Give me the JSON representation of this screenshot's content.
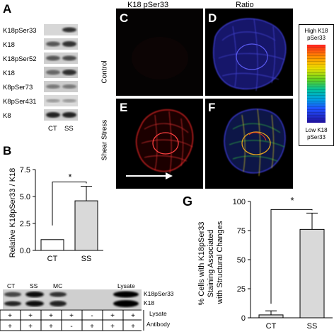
{
  "panel_a": {
    "letter": "A",
    "blot_labels": [
      "K18pSer33",
      "K18",
      "K18pSer52",
      "K18",
      "K8pSer73",
      "K8pSer431",
      "K8"
    ],
    "lanes": [
      "CT",
      "SS"
    ]
  },
  "panel_b": {
    "letter": "B",
    "significance": "*",
    "ip_lanes": [
      "CT",
      "SS",
      "MC",
      "Lysate"
    ],
    "ip_blot_labels": [
      "K18pSer33",
      "K18"
    ],
    "table": {
      "rows": [
        {
          "label": "Lysate",
          "signs": [
            "+",
            "+",
            "+",
            "+",
            "-",
            "+",
            "+"
          ]
        },
        {
          "label": "Antibody",
          "signs": [
            "+",
            "+",
            "+",
            "-",
            "+",
            "+",
            "+"
          ]
        }
      ]
    }
  },
  "panel_micro": {
    "col_titles": [
      "K18 pSer33",
      "Ratio"
    ],
    "row_labels": [
      "Control",
      "Shear Stress"
    ],
    "letters": [
      "C",
      "D",
      "E",
      "F"
    ],
    "scale": {
      "high": "High K18 pSer33",
      "low": "Low K18 pSer33"
    }
  },
  "panel_g": {
    "letter": "G",
    "significance": "*"
  },
  "chart_data": [
    {
      "type": "bar",
      "categories": [
        "CT",
        "SS"
      ],
      "values": [
        1.0,
        4.6
      ],
      "errors": [
        0,
        1.35
      ],
      "ylabel": "Relative K18pSer33 / K18",
      "ylim": [
        0,
        7.5
      ],
      "yticks": [
        "0.0",
        "2.5",
        "5.0",
        "7.5"
      ],
      "colors": [
        "#ffffff",
        "#d9d9d9"
      ]
    },
    {
      "type": "bar",
      "categories": [
        "CT",
        "SS"
      ],
      "values": [
        2.5,
        76
      ],
      "errors": [
        3.5,
        14
      ],
      "ylabel": "% Cells with K18pSer33 Staining Associated with Structural Changes",
      "ylabel_lines": [
        "% Cells with K18pSer33",
        "Staining Associated",
        "with Structural Changes"
      ],
      "ylim": [
        0,
        100
      ],
      "yticks": [
        "0",
        "25",
        "50",
        "75",
        "100"
      ],
      "colors": [
        "#d9d9d9",
        "#d9d9d9"
      ]
    }
  ]
}
